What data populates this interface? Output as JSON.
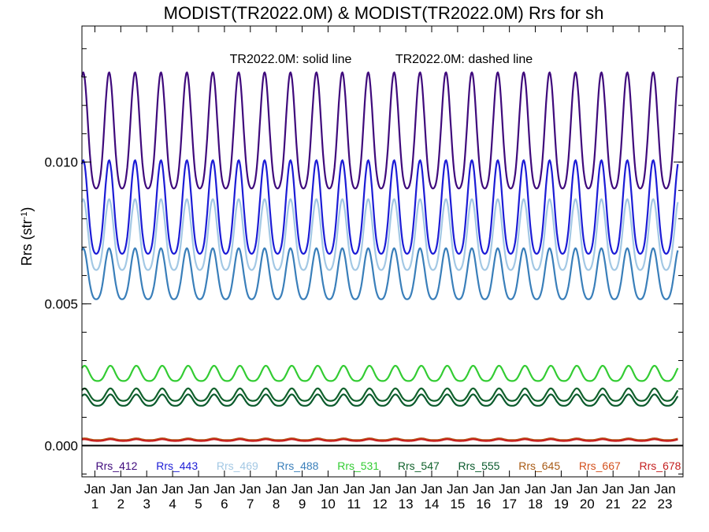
{
  "chart_data": {
    "type": "line",
    "title": "MODIST(TR2022.0M) & MODIST(TR2022.0M)  Rrs for sh",
    "subtitle_solid": "TR2022.0M: solid line",
    "subtitle_dashed": "TR2022.0M: dashed line",
    "ylabel": "Rrs (str",
    "ylabel_sup": "-1",
    "ylabel_close": ")",
    "xlabel": "",
    "ylim": [
      -0.0011,
      0.0148
    ],
    "xlim": [
      0,
      23.2
    ],
    "yticks": [
      {
        "value": 0.0,
        "label": "0.000"
      },
      {
        "value": 0.005,
        "label": "0.005"
      },
      {
        "value": 0.01,
        "label": "0.010"
      }
    ],
    "xtick_month": "Jan",
    "xtick_years": [
      "1",
      "2",
      "3",
      "4",
      "5",
      "6",
      "7",
      "8",
      "9",
      "10",
      "11",
      "12",
      "13",
      "14",
      "15",
      "16",
      "17",
      "18",
      "19",
      "20",
      "21",
      "22",
      "23"
    ],
    "grid": false,
    "legend_position": "bottom inside",
    "zero_line": true,
    "series": [
      {
        "name": "Rrs_412",
        "color": "#3f0a7c",
        "base": 0.01075,
        "amp": 0.00205,
        "phase": 0.05
      },
      {
        "name": "Rrs_443",
        "color": "#1c1cd6",
        "base": 0.00812,
        "amp": 0.00165,
        "phase": 0.05
      },
      {
        "name": "Rrs_469",
        "color": "#a3c8e4",
        "base": 0.00722,
        "amp": 0.00125,
        "phase": 0.05
      },
      {
        "name": "Rrs_488",
        "color": "#3a7fba",
        "base": 0.0059,
        "amp": 0.0009,
        "phase": 0.05
      },
      {
        "name": "Rrs_531",
        "color": "#33cc33",
        "base": 0.0025,
        "amp": 0.00027,
        "phase": 0.1
      },
      {
        "name": "Rrs_547",
        "color": "#11622c",
        "base": 0.00176,
        "amp": 0.00022,
        "phase": 0.1
      },
      {
        "name": "Rrs_555",
        "color": "#0a5a2c",
        "base": 0.00157,
        "amp": 0.0002,
        "phase": 0.1
      },
      {
        "name": "Rrs_645",
        "color": "#a85a14",
        "base": 0.00022,
        "amp": 3e-05,
        "phase": 0.1
      },
      {
        "name": "Rrs_667",
        "color": "#d4501c",
        "base": 0.0002,
        "amp": 3e-05,
        "phase": 0.1
      },
      {
        "name": "Rrs_678",
        "color": "#c41e1e",
        "base": 0.00019,
        "amp": 3e-05,
        "phase": 0.1
      }
    ]
  }
}
